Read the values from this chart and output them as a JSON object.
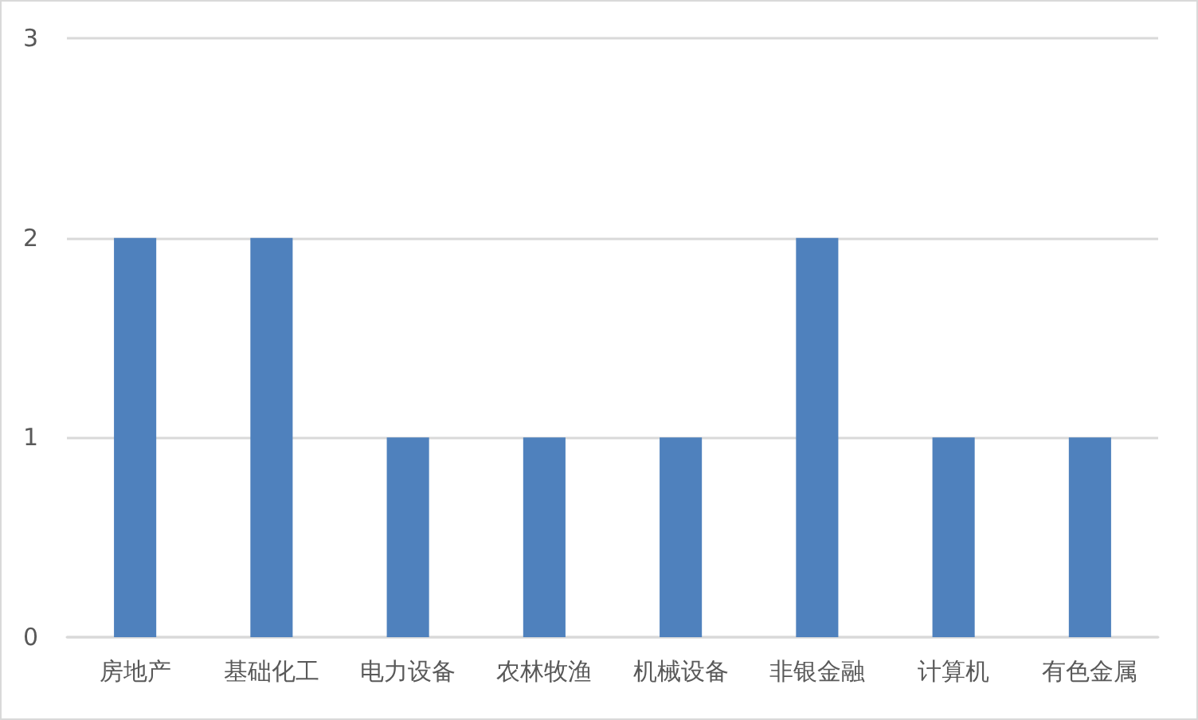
{
  "chart_data": {
    "type": "bar",
    "categories": [
      "房地产",
      "基础化工",
      "电力设备",
      "农林牧渔",
      "机械设备",
      "非银金融",
      "计算机",
      "有色金属"
    ],
    "values": [
      2,
      2,
      1,
      1,
      1,
      2,
      1,
      1
    ],
    "color": "#4f81bd",
    "ylim": [
      0,
      3
    ],
    "yticks": [
      0,
      1,
      2,
      3
    ],
    "grid": "y"
  }
}
